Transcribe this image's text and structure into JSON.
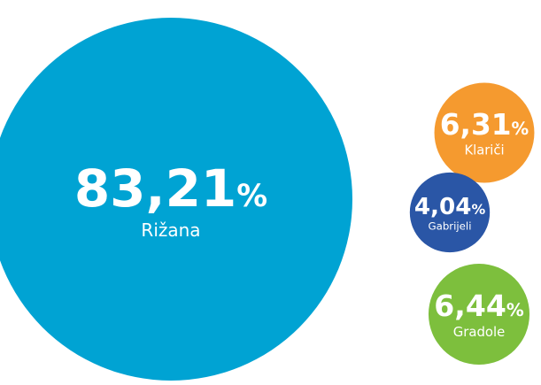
{
  "chart_data": {
    "type": "bubble",
    "categories": [
      "Rižana",
      "Klariči",
      "Gabrijeli",
      "Gradole"
    ],
    "values": [
      83.21,
      6.31,
      4.04,
      6.44
    ],
    "value_labels": [
      "83,21",
      "6,31",
      "4,04",
      "6,44"
    ],
    "unit": "%",
    "colors": [
      "#00a3d3",
      "#f59a2f",
      "#2a56a6",
      "#7dbf3d"
    ]
  }
}
